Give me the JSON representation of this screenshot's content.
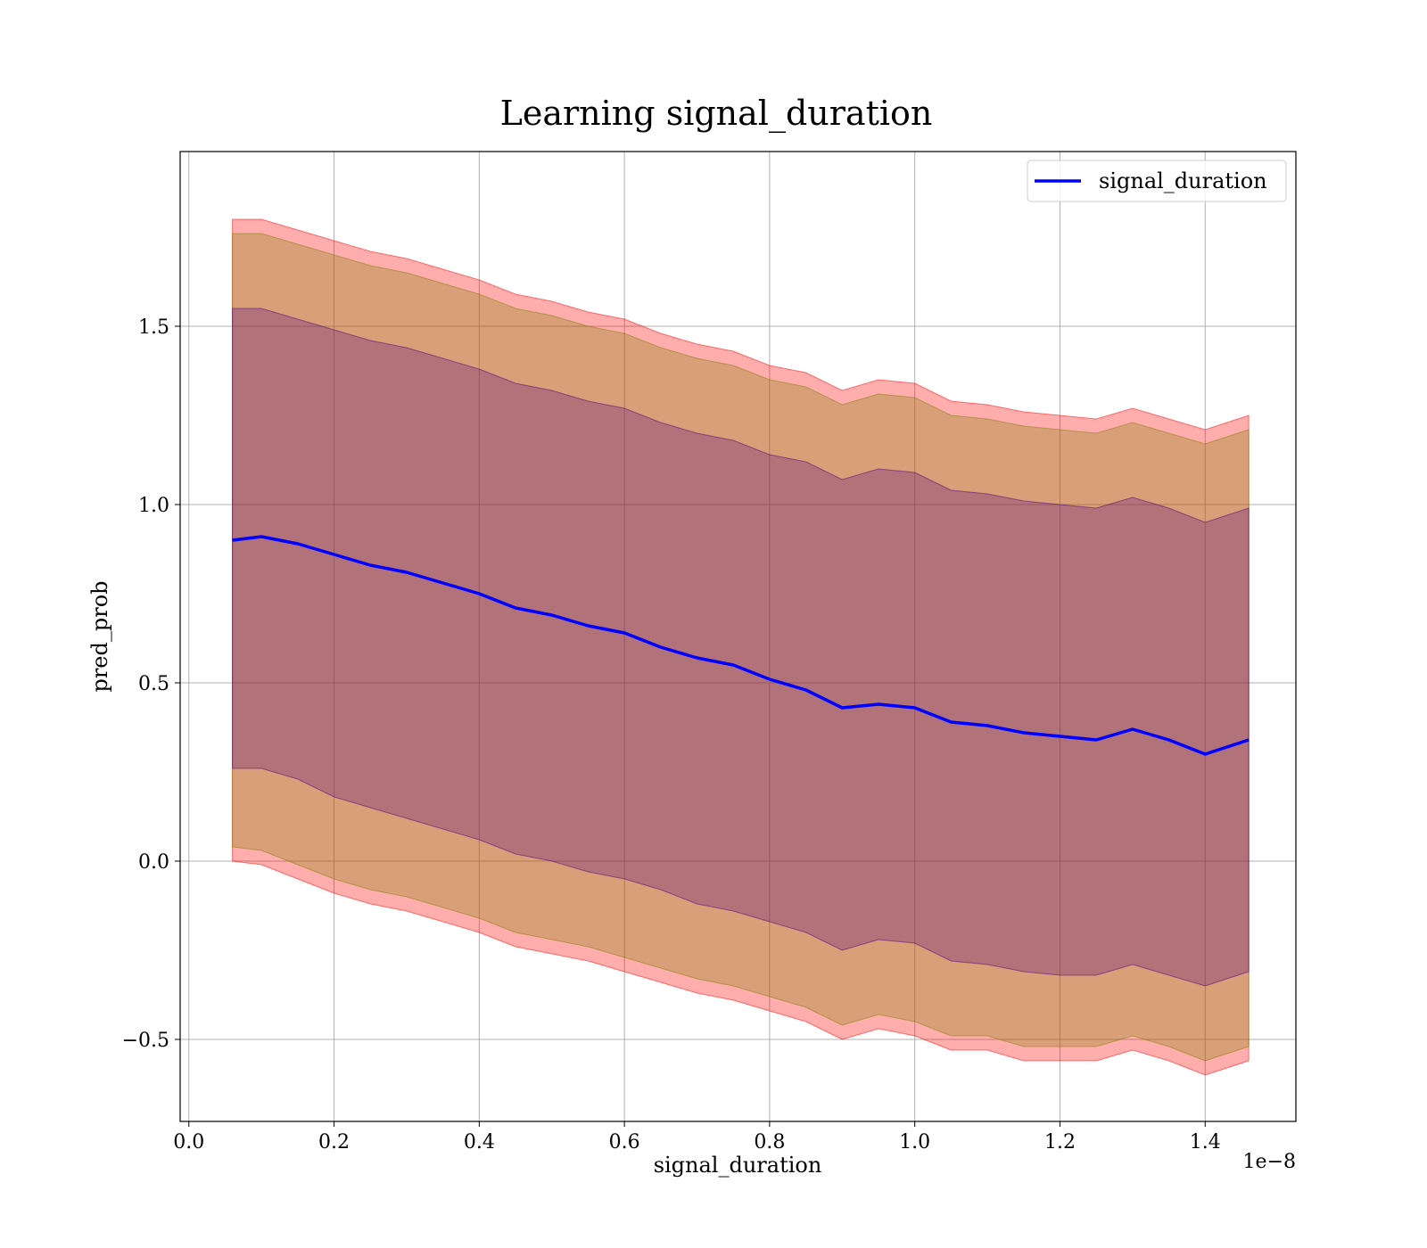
{
  "chart_data": {
    "type": "area",
    "title": "Learning signal_duration",
    "xlabel": "signal_duration",
    "ylabel": "pred_prob",
    "x_offset_text": "1e−8",
    "xlim": [
      -0.012,
      1.525
    ],
    "ylim": [
      -0.73,
      1.99
    ],
    "xticks": [
      0.0,
      0.2,
      0.4,
      0.6,
      0.8,
      1.0,
      1.2,
      1.4
    ],
    "xtick_labels": [
      "0.0",
      "0.2",
      "0.4",
      "0.6",
      "0.8",
      "1.0",
      "1.2",
      "1.4"
    ],
    "yticks": [
      -0.5,
      0.0,
      0.5,
      1.0,
      1.5
    ],
    "ytick_labels": [
      "−0.5",
      "0.0",
      "0.5",
      "1.0",
      "1.5"
    ],
    "grid": true,
    "legend_position": "upper right",
    "x": [
      0.06,
      0.1,
      0.15,
      0.2,
      0.25,
      0.3,
      0.35,
      0.4,
      0.45,
      0.5,
      0.55,
      0.6,
      0.65,
      0.7,
      0.75,
      0.8,
      0.85,
      0.9,
      0.95,
      1.0,
      1.05,
      1.1,
      1.15,
      1.2,
      1.25,
      1.3,
      1.35,
      1.4,
      1.46
    ],
    "series": [
      {
        "name": "signal_duration",
        "color": "#0000ff",
        "values": [
          0.9,
          0.91,
          0.89,
          0.86,
          0.83,
          0.81,
          0.78,
          0.75,
          0.71,
          0.69,
          0.66,
          0.64,
          0.6,
          0.57,
          0.55,
          0.51,
          0.48,
          0.43,
          0.44,
          0.43,
          0.39,
          0.38,
          0.36,
          0.35,
          0.34,
          0.37,
          0.34,
          0.3,
          0.34
        ]
      }
    ],
    "bands": [
      {
        "color": "#ff0000",
        "opacity": 0.32,
        "lower": [
          0.0,
          -0.01,
          -0.05,
          -0.09,
          -0.12,
          -0.14,
          -0.17,
          -0.2,
          -0.24,
          -0.26,
          -0.28,
          -0.31,
          -0.34,
          -0.37,
          -0.39,
          -0.42,
          -0.45,
          -0.5,
          -0.47,
          -0.49,
          -0.53,
          -0.53,
          -0.56,
          -0.56,
          -0.56,
          -0.53,
          -0.56,
          -0.6,
          -0.56
        ],
        "upper": [
          1.8,
          1.8,
          1.77,
          1.74,
          1.71,
          1.69,
          1.66,
          1.63,
          1.59,
          1.57,
          1.54,
          1.52,
          1.48,
          1.45,
          1.43,
          1.39,
          1.37,
          1.32,
          1.35,
          1.34,
          1.29,
          1.28,
          1.26,
          1.25,
          1.24,
          1.27,
          1.24,
          1.21,
          1.25
        ]
      },
      {
        "color": "#808000",
        "opacity": 0.3,
        "lower": [
          0.04,
          0.03,
          -0.01,
          -0.05,
          -0.08,
          -0.1,
          -0.13,
          -0.16,
          -0.2,
          -0.22,
          -0.24,
          -0.27,
          -0.3,
          -0.33,
          -0.35,
          -0.38,
          -0.41,
          -0.46,
          -0.43,
          -0.45,
          -0.49,
          -0.49,
          -0.52,
          -0.52,
          -0.52,
          -0.49,
          -0.52,
          -0.56,
          -0.52
        ],
        "upper": [
          1.76,
          1.76,
          1.73,
          1.7,
          1.67,
          1.65,
          1.62,
          1.59,
          1.55,
          1.53,
          1.5,
          1.48,
          1.44,
          1.41,
          1.39,
          1.35,
          1.33,
          1.28,
          1.31,
          1.3,
          1.25,
          1.24,
          1.22,
          1.21,
          1.2,
          1.23,
          1.2,
          1.17,
          1.21
        ]
      },
      {
        "color": "#4b0082",
        "opacity": 0.28,
        "lower": [
          0.26,
          0.26,
          0.23,
          0.18,
          0.15,
          0.12,
          0.09,
          0.06,
          0.02,
          0.0,
          -0.03,
          -0.05,
          -0.08,
          -0.12,
          -0.14,
          -0.17,
          -0.2,
          -0.25,
          -0.22,
          -0.23,
          -0.28,
          -0.29,
          -0.31,
          -0.32,
          -0.32,
          -0.29,
          -0.32,
          -0.35,
          -0.31
        ],
        "upper": [
          1.55,
          1.55,
          1.52,
          1.49,
          1.46,
          1.44,
          1.41,
          1.38,
          1.34,
          1.32,
          1.29,
          1.27,
          1.23,
          1.2,
          1.18,
          1.14,
          1.12,
          1.07,
          1.1,
          1.09,
          1.04,
          1.03,
          1.01,
          1.0,
          0.99,
          1.02,
          0.99,
          0.95,
          0.99
        ]
      }
    ]
  }
}
